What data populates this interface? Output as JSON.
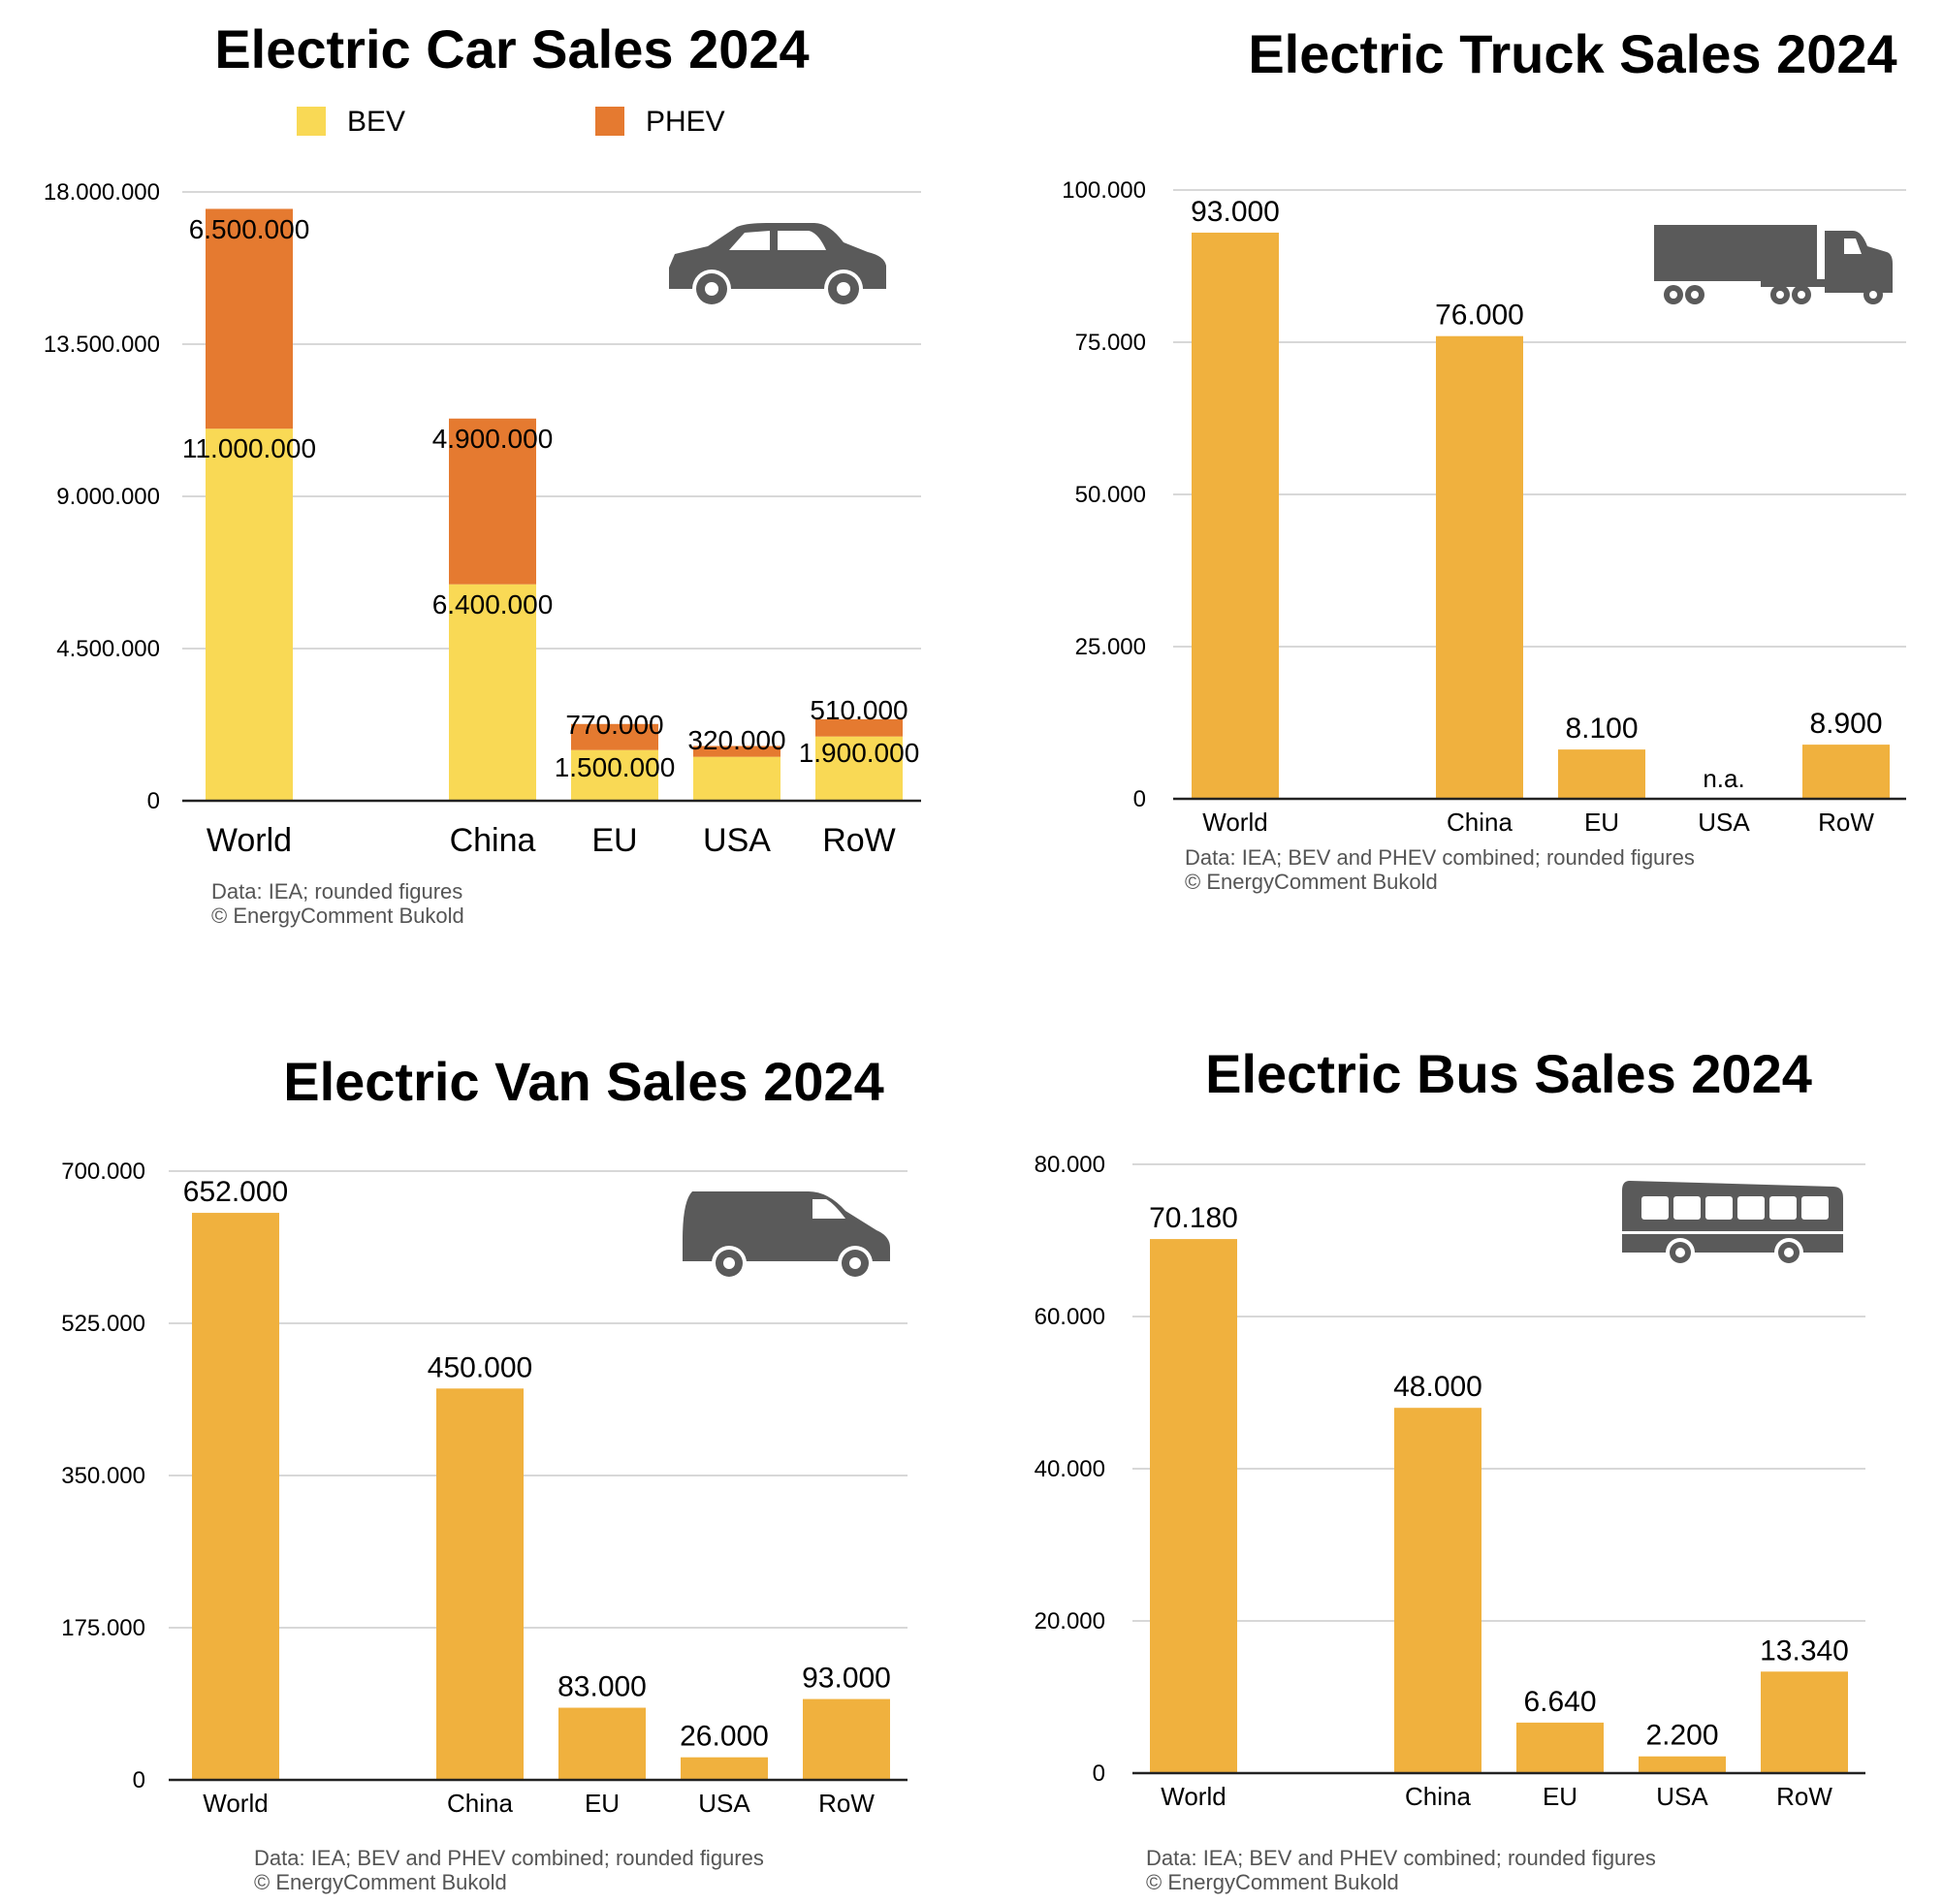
{
  "charts": [
    {
      "type": "bar",
      "stacked": true,
      "title": "Electric Car Sales 2024",
      "icon": "car-icon",
      "categories": [
        "World",
        "China",
        "EU",
        "USA",
        "RoW"
      ],
      "series": [
        {
          "name": "BEV",
          "color": "#F9D955",
          "values": [
            11000000,
            6400000,
            1500000,
            1300000,
            1900000
          ],
          "labels": [
            "11.000.000",
            "6.400.000",
            "1.500.000",
            "",
            "1.900.000"
          ]
        },
        {
          "name": "PHEV",
          "color": "#E57A30",
          "values": [
            6500000,
            4900000,
            770000,
            320000,
            510000
          ],
          "labels": [
            "6.500.000",
            "4.900.000",
            "770.000",
            "320.000",
            "510.000"
          ]
        }
      ],
      "y_ticks": [
        "0",
        "4.500.000",
        "9.000.000",
        "13.500.000",
        "18.000.000"
      ],
      "ylim": [
        0,
        18000000
      ],
      "grid": true,
      "legend": "top",
      "source_lines": [
        "Data: IEA; rounded figures",
        "© EnergyComment Bukold"
      ]
    },
    {
      "type": "bar",
      "title": "Electric Truck Sales 2024",
      "icon": "truck-icon",
      "categories": [
        "World",
        "China",
        "EU",
        "USA",
        "RoW"
      ],
      "values": [
        93000,
        76000,
        8100,
        0,
        8900
      ],
      "labels": [
        "93.000",
        "76.000",
        "8.100",
        "n.a.",
        "8.900"
      ],
      "color": "#F0B13E",
      "y_ticks": [
        "0",
        "25.000",
        "50.000",
        "75.000",
        "100.000"
      ],
      "ylim": [
        0,
        100000
      ],
      "grid": true,
      "source_lines": [
        "Data: IEA; BEV and PHEV combined; rounded figures",
        "© EnergyComment Bukold"
      ]
    },
    {
      "type": "bar",
      "title": "Electric Van Sales 2024",
      "icon": "van-icon",
      "categories": [
        "World",
        "China",
        "EU",
        "USA",
        "RoW"
      ],
      "values": [
        652000,
        450000,
        83000,
        26000,
        93000
      ],
      "labels": [
        "652.000",
        "450.000",
        "83.000",
        "26.000",
        "93.000"
      ],
      "color": "#F0B13E",
      "y_ticks": [
        "0",
        "175.000",
        "350.000",
        "525.000",
        "700.000"
      ],
      "ylim": [
        0,
        700000
      ],
      "grid": true,
      "source_lines": [
        "Data: IEA; BEV and PHEV combined; rounded figures",
        "© EnergyComment Bukold"
      ]
    },
    {
      "type": "bar",
      "title": "Electric Bus Sales 2024",
      "icon": "bus-icon",
      "categories": [
        "World",
        "China",
        "EU",
        "USA",
        "RoW"
      ],
      "values": [
        70180,
        48000,
        6640,
        2200,
        13340
      ],
      "labels": [
        "70.180",
        "48.000",
        "6.640",
        "2.200",
        "13.340"
      ],
      "color": "#F0B13E",
      "y_ticks": [
        "0",
        "20.000",
        "40.000",
        "60.000",
        "80.000"
      ],
      "ylim": [
        0,
        80000
      ],
      "grid": true,
      "source_lines": [
        "Data: IEA; BEV and PHEV combined; rounded figures",
        "© EnergyComment Bukold"
      ]
    }
  ]
}
